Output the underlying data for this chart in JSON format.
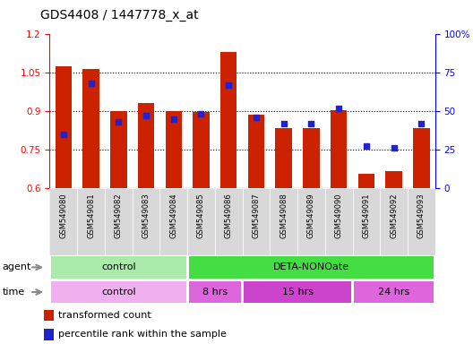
{
  "title": "GDS4408 / 1447778_x_at",
  "samples": [
    "GSM549080",
    "GSM549081",
    "GSM549082",
    "GSM549083",
    "GSM549084",
    "GSM549085",
    "GSM549086",
    "GSM549087",
    "GSM549088",
    "GSM549089",
    "GSM549090",
    "GSM549091",
    "GSM549092",
    "GSM549093"
  ],
  "bar_values": [
    1.075,
    1.065,
    0.9,
    0.93,
    0.9,
    0.895,
    1.13,
    0.885,
    0.835,
    0.835,
    0.905,
    0.655,
    0.665,
    0.835
  ],
  "dot_values": [
    35,
    68,
    43,
    47,
    45,
    48,
    67,
    46,
    42,
    42,
    52,
    27,
    26,
    42
  ],
  "bar_color": "#cc2200",
  "dot_color": "#2222cc",
  "ylim_left": [
    0.6,
    1.2
  ],
  "ylim_right": [
    0,
    100
  ],
  "yticks_left": [
    0.6,
    0.75,
    0.9,
    1.05,
    1.2
  ],
  "ytick_labels_left": [
    "0.6",
    "0.75",
    "0.9",
    "1.05",
    "1.2"
  ],
  "yticks_right": [
    0,
    25,
    50,
    75,
    100
  ],
  "ytick_labels_right": [
    "0",
    "25",
    "50",
    "75",
    "100%"
  ],
  "agent_groups": [
    {
      "label": "control",
      "start": 0,
      "end": 5,
      "color": "#aaeaaa"
    },
    {
      "label": "DETA-NONOate",
      "start": 5,
      "end": 14,
      "color": "#44dd44"
    }
  ],
  "time_groups": [
    {
      "label": "control",
      "start": 0,
      "end": 5,
      "color": "#f0b0f0"
    },
    {
      "label": "8 hrs",
      "start": 5,
      "end": 7,
      "color": "#dd66dd"
    },
    {
      "label": "15 hrs",
      "start": 7,
      "end": 11,
      "color": "#cc44cc"
    },
    {
      "label": "24 hrs",
      "start": 11,
      "end": 14,
      "color": "#dd66dd"
    }
  ],
  "legend_bar_label": "transformed count",
  "legend_dot_label": "percentile rank within the sample",
  "agent_label": "agent",
  "time_label": "time",
  "grid_yticks": [
    0.75,
    0.9,
    1.05
  ],
  "bar_width": 0.6,
  "tick_fontsize": 7.5,
  "label_fontsize": 8,
  "title_fontsize": 10
}
